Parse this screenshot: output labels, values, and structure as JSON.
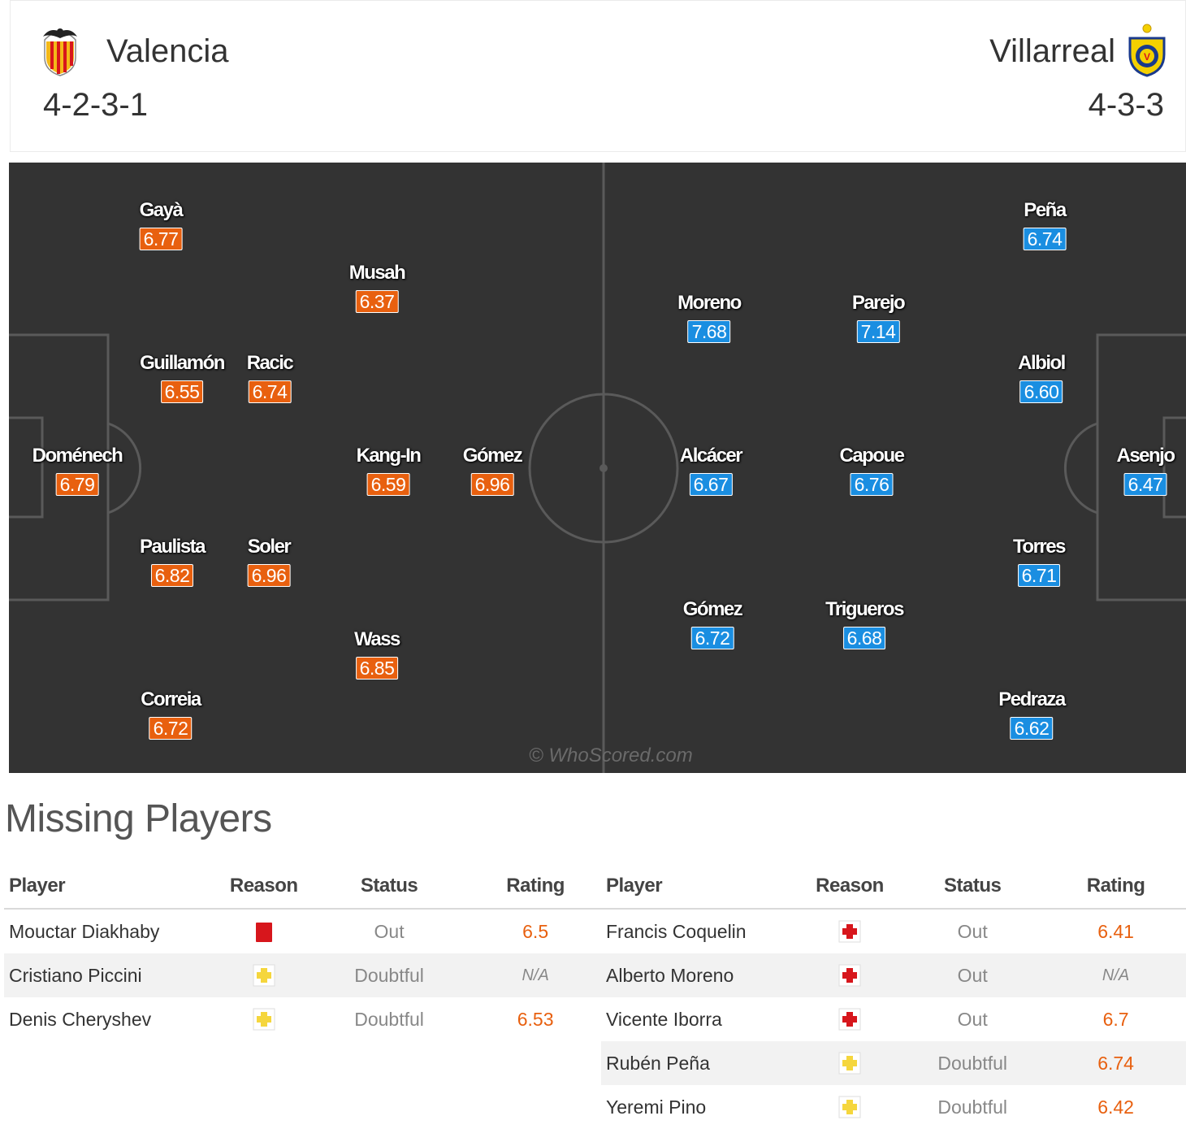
{
  "home": {
    "name": "Valencia",
    "formation": "4-2-3-1",
    "color": "#e8600f",
    "crest": "valencia-bat-crest-icon",
    "players": [
      {
        "name": "Gayà",
        "rating": "6.77"
      },
      {
        "name": "Musah",
        "rating": "6.37"
      },
      {
        "name": "Guillamón",
        "rating": "6.55"
      },
      {
        "name": "Racic",
        "rating": "6.74"
      },
      {
        "name": "Doménech",
        "rating": "6.79"
      },
      {
        "name": "Kang-In",
        "rating": "6.59"
      },
      {
        "name": "Gómez",
        "rating": "6.96"
      },
      {
        "name": "Paulista",
        "rating": "6.82"
      },
      {
        "name": "Soler",
        "rating": "6.96"
      },
      {
        "name": "Wass",
        "rating": "6.85"
      },
      {
        "name": "Correia",
        "rating": "6.72"
      }
    ]
  },
  "away": {
    "name": "Villarreal",
    "formation": "4-3-3",
    "color": "#1a8ee1",
    "crest": "villarreal-crest-icon",
    "players": [
      {
        "name": "Peña",
        "rating": "6.74"
      },
      {
        "name": "Moreno",
        "rating": "7.68"
      },
      {
        "name": "Parejo",
        "rating": "7.14"
      },
      {
        "name": "Albiol",
        "rating": "6.60"
      },
      {
        "name": "Alcácer",
        "rating": "6.67"
      },
      {
        "name": "Capoue",
        "rating": "6.76"
      },
      {
        "name": "Asenjo",
        "rating": "6.47"
      },
      {
        "name": "Torres",
        "rating": "6.71"
      },
      {
        "name": "Gómez",
        "rating": "6.72"
      },
      {
        "name": "Trigueros",
        "rating": "6.68"
      },
      {
        "name": "Pedraza",
        "rating": "6.62"
      }
    ]
  },
  "watermark": "© WhoScored.com",
  "missing": {
    "title": "Missing Players",
    "headers": {
      "player": "Player",
      "reason": "Reason",
      "status": "Status",
      "rating": "Rating"
    },
    "home_rows": [
      {
        "player": "Mouctar Diakhaby",
        "reason": "red-card-icon",
        "status": "Out",
        "rating": "6.5"
      },
      {
        "player": "Cristiano Piccini",
        "reason": "injury-doubtful-icon",
        "status": "Doubtful",
        "rating": "N/A"
      },
      {
        "player": "Denis Cheryshev",
        "reason": "injury-doubtful-icon",
        "status": "Doubtful",
        "rating": "6.53"
      }
    ],
    "away_rows": [
      {
        "player": "Francis Coquelin",
        "reason": "injury-out-icon",
        "status": "Out",
        "rating": "6.41"
      },
      {
        "player": "Alberto Moreno",
        "reason": "injury-out-icon",
        "status": "Out",
        "rating": "N/A"
      },
      {
        "player": "Vicente Iborra",
        "reason": "injury-out-icon",
        "status": "Out",
        "rating": "6.7"
      },
      {
        "player": "Rubén Peña",
        "reason": "injury-doubtful-icon",
        "status": "Doubtful",
        "rating": "6.74"
      },
      {
        "player": "Yeremi Pino",
        "reason": "injury-doubtful-icon",
        "status": "Doubtful",
        "rating": "6.42"
      }
    ]
  }
}
